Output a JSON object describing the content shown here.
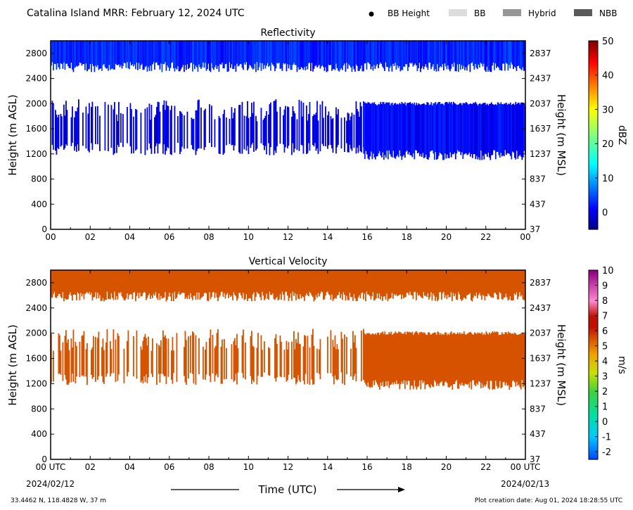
{
  "header": {
    "title": "Catalina Island MRR:  February 12, 2024 UTC",
    "legend": [
      {
        "label": "BB Height",
        "kind": "dot",
        "color": "#000000"
      },
      {
        "label": "BB",
        "kind": "swatch",
        "color": "#dcdcdc"
      },
      {
        "label": "Hybrid",
        "kind": "swatch",
        "color": "#969696"
      },
      {
        "label": "NBB",
        "kind": "swatch",
        "color": "#5a5a5a"
      }
    ]
  },
  "footer": {
    "location": "33.4462 N, 118.4828 W, 37 m",
    "creation": "Plot creation date: Aug 01, 2024 18:28:55 UTC",
    "xlabel": "Time (UTC)",
    "start_date": "2024/02/12",
    "end_date": "2024/02/13"
  },
  "chart_data": [
    {
      "type": "heatmap",
      "title": "Reflectivity",
      "ylabel": "Height (m AGL)",
      "ylabel_right": "Height (m MSL)",
      "x_ticks": [
        "00",
        "02",
        "04",
        "06",
        "08",
        "10",
        "12",
        "14",
        "16",
        "18",
        "20",
        "22",
        "00"
      ],
      "xlim": [
        0,
        24
      ],
      "ylim": [
        0,
        3000
      ],
      "y_ticks": [
        0,
        400,
        800,
        1200,
        1600,
        2000,
        2400,
        2800
      ],
      "y_ticks_right": [
        "37",
        "437",
        "837",
        "1237",
        "1637",
        "2037",
        "2437",
        "2837"
      ],
      "colorbar": {
        "label": "dBZ",
        "min": -5,
        "max": 50,
        "ticks": [
          0,
          10,
          20,
          30,
          40,
          50
        ]
      },
      "layers": [
        {
          "x_start": 0,
          "x_end": 24,
          "y_bottom": 2550,
          "y_top": 3000,
          "value": 3,
          "coverage": "continuous"
        },
        {
          "x_start": 0,
          "x_end": 15.8,
          "y_bottom": 1300,
          "y_top": 1950,
          "value": 0,
          "coverage": "intermittent"
        },
        {
          "x_start": 15.8,
          "x_end": 24,
          "y_bottom": 1150,
          "y_top": 2000,
          "value": 1,
          "coverage": "continuous"
        }
      ]
    },
    {
      "type": "heatmap",
      "title": "Vertical Velocity",
      "ylabel": "Height (m AGL)",
      "ylabel_right": "Height (m MSL)",
      "x_ticks": [
        "00 UTC",
        "02",
        "04",
        "06",
        "08",
        "10",
        "12",
        "14",
        "16",
        "18",
        "20",
        "22",
        "00 UTC"
      ],
      "xlim": [
        0,
        24
      ],
      "ylim": [
        0,
        3000
      ],
      "y_ticks": [
        0,
        400,
        800,
        1200,
        1600,
        2000,
        2400,
        2800
      ],
      "y_ticks_right": [
        "37",
        "437",
        "837",
        "1237",
        "1637",
        "2037",
        "2437",
        "2837"
      ],
      "colorbar": {
        "label": "m/s",
        "min": -2.5,
        "max": 10,
        "ticks": [
          -2,
          -1,
          0,
          1,
          2,
          3,
          4,
          5,
          6,
          7,
          8,
          9,
          10
        ]
      },
      "layers": [
        {
          "x_start": 0,
          "x_end": 24,
          "y_bottom": 2550,
          "y_top": 3000,
          "value": 5.5,
          "coverage": "continuous"
        },
        {
          "x_start": 0,
          "x_end": 15.8,
          "y_bottom": 1300,
          "y_top": 1950,
          "value": 5.5,
          "coverage": "intermittent"
        },
        {
          "x_start": 15.8,
          "x_end": 24,
          "y_bottom": 1150,
          "y_top": 2000,
          "value": 5.5,
          "coverage": "continuous"
        }
      ]
    }
  ]
}
